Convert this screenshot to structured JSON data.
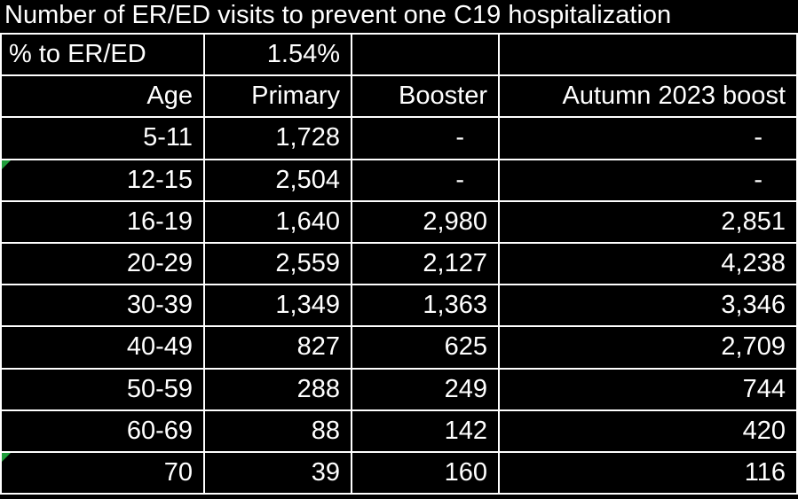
{
  "title": "Number of ER/ED visits to prevent one C19 hospitalization",
  "pct_label": "% to ER/ED",
  "pct_value": "1.54%",
  "headers": [
    "Age",
    "Primary",
    "Booster",
    "Autumn 2023 boost"
  ],
  "rows": [
    {
      "age": "5-11",
      "primary": "1,728",
      "booster": "-",
      "autumn": "-"
    },
    {
      "age": "12-15",
      "primary": "2,504",
      "booster": "-",
      "autumn": "-"
    },
    {
      "age": "16-19",
      "primary": "1,640",
      "booster": "2,980",
      "autumn": "2,851"
    },
    {
      "age": "20-29",
      "primary": "2,559",
      "booster": "2,127",
      "autumn": "4,238"
    },
    {
      "age": "30-39",
      "primary": "1,349",
      "booster": "1,363",
      "autumn": "3,346"
    },
    {
      "age": "40-49",
      "primary": "827",
      "booster": "625",
      "autumn": "2,709"
    },
    {
      "age": "50-59",
      "primary": "288",
      "booster": "249",
      "autumn": "744"
    },
    {
      "age": "60-69",
      "primary": "88",
      "booster": "142",
      "autumn": "420"
    },
    {
      "age": "70",
      "primary": "39",
      "booster": "160",
      "autumn": "116"
    }
  ],
  "colors": {
    "background": "#000000",
    "text": "#ffffff",
    "gridline": "#ffffff",
    "comment_marker": "#1f9d3a"
  }
}
